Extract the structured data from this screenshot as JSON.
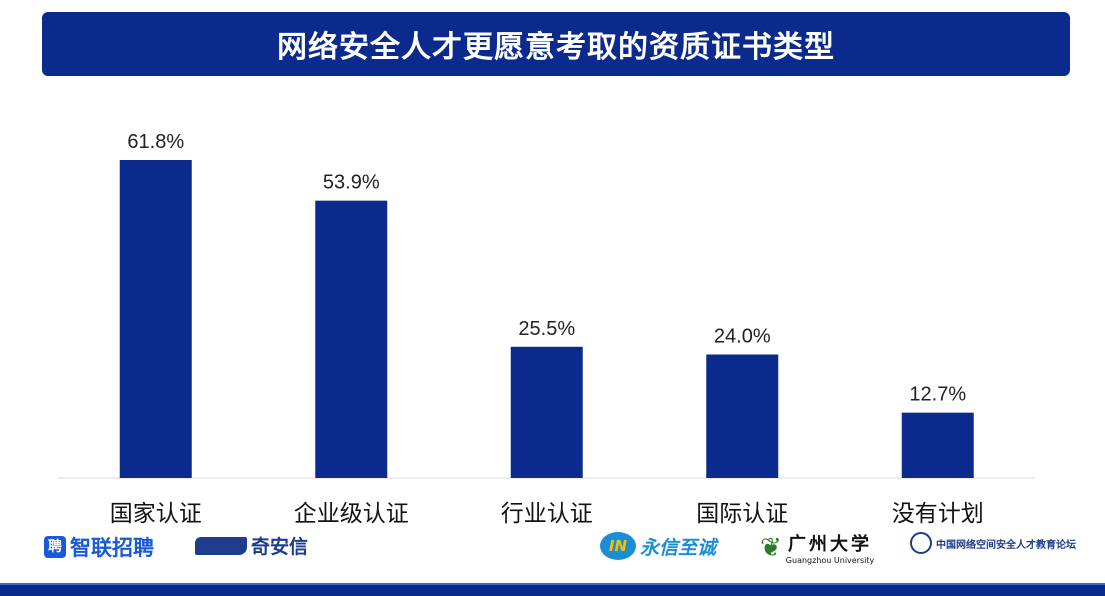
{
  "chart_data": {
    "type": "bar",
    "title": "网络安全人才更愿意考取的资质证书类型",
    "categories": [
      "国家认证",
      "企业级认证",
      "行业认证",
      "国际认证",
      "没有计划"
    ],
    "values": [
      61.8,
      53.9,
      25.5,
      24.0,
      12.7
    ],
    "data_labels": [
      "61.8%",
      "53.9%",
      "25.5%",
      "24.0%",
      "12.7%"
    ],
    "xlabel": "",
    "ylabel": "",
    "ylim": [
      0,
      65
    ],
    "grid": false,
    "bar_color": "#0b2a8e",
    "title_bar_color": "#0b2a8e"
  },
  "logos": {
    "zhilian": "智联招聘",
    "qianxin": "奇安信",
    "yongxin": "永信至诚",
    "gzhu": "广州大学",
    "gzhu_en": "Guangzhou University",
    "forum": "中国网络空间安全人才教育论坛"
  }
}
